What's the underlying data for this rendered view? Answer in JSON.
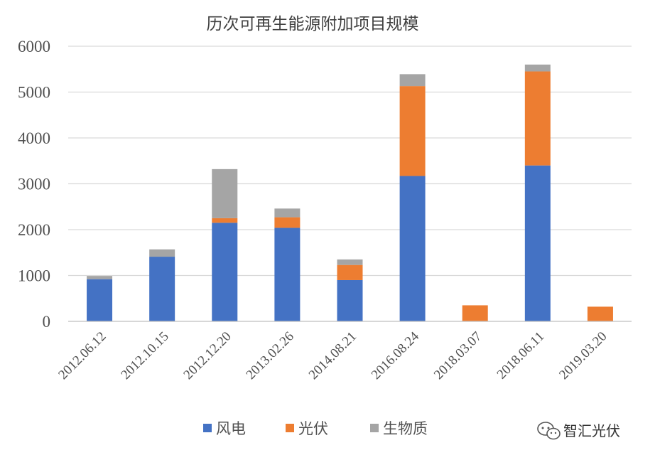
{
  "chart_data": {
    "type": "bar",
    "stacked": true,
    "title": "历次可再生能源附加项目规模",
    "categories": [
      "2012.06.12",
      "2012.10.15",
      "2012.12.20",
      "2013.02.26",
      "2014.08.21",
      "2016.08.24",
      "2018.03.07",
      "2018.06.11",
      "2019.03.20"
    ],
    "series": [
      {
        "name": "风电",
        "color": "#4472C4",
        "values": [
          920,
          1410,
          2150,
          2040,
          900,
          3170,
          0,
          3400,
          0
        ]
      },
      {
        "name": "光伏",
        "color": "#ED7D31",
        "values": [
          0,
          0,
          100,
          230,
          330,
          1960,
          350,
          2050,
          320
        ]
      },
      {
        "name": "生物质",
        "color": "#A5A5A5",
        "values": [
          70,
          160,
          1070,
          190,
          120,
          260,
          0,
          150,
          0
        ]
      }
    ],
    "yticks": [
      "0",
      "1000",
      "2000",
      "3000",
      "4000",
      "5000",
      "6000"
    ],
    "ylim": [
      0,
      6000
    ],
    "grid": true,
    "legend": "bottom"
  },
  "watermark": {
    "text": "智汇光伏",
    "icon": "wechat-icon"
  }
}
